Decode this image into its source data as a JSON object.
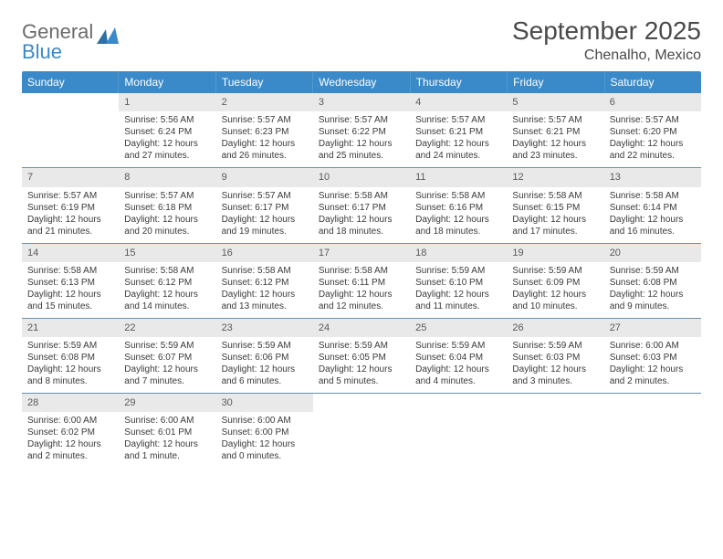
{
  "brand": {
    "word1": "General",
    "word2": "Blue"
  },
  "title": "September 2025",
  "location": "Chenalho, Mexico",
  "colors": {
    "header_bg": "#3a8ac9",
    "logo_blue": "#3a8ac9",
    "logo_gray": "#6b6b6b",
    "daynum_bg": "#e9e9e9",
    "rule": "#6a91ae"
  },
  "weekdays": [
    "Sunday",
    "Monday",
    "Tuesday",
    "Wednesday",
    "Thursday",
    "Friday",
    "Saturday"
  ],
  "weeks": [
    [
      null,
      {
        "n": "1",
        "sr": "5:56 AM",
        "ss": "6:24 PM",
        "dl": "Daylight: 12 hours and 27 minutes."
      },
      {
        "n": "2",
        "sr": "5:57 AM",
        "ss": "6:23 PM",
        "dl": "Daylight: 12 hours and 26 minutes."
      },
      {
        "n": "3",
        "sr": "5:57 AM",
        "ss": "6:22 PM",
        "dl": "Daylight: 12 hours and 25 minutes."
      },
      {
        "n": "4",
        "sr": "5:57 AM",
        "ss": "6:21 PM",
        "dl": "Daylight: 12 hours and 24 minutes."
      },
      {
        "n": "5",
        "sr": "5:57 AM",
        "ss": "6:21 PM",
        "dl": "Daylight: 12 hours and 23 minutes."
      },
      {
        "n": "6",
        "sr": "5:57 AM",
        "ss": "6:20 PM",
        "dl": "Daylight: 12 hours and 22 minutes."
      }
    ],
    [
      {
        "n": "7",
        "sr": "5:57 AM",
        "ss": "6:19 PM",
        "dl": "Daylight: 12 hours and 21 minutes."
      },
      {
        "n": "8",
        "sr": "5:57 AM",
        "ss": "6:18 PM",
        "dl": "Daylight: 12 hours and 20 minutes."
      },
      {
        "n": "9",
        "sr": "5:57 AM",
        "ss": "6:17 PM",
        "dl": "Daylight: 12 hours and 19 minutes."
      },
      {
        "n": "10",
        "sr": "5:58 AM",
        "ss": "6:17 PM",
        "dl": "Daylight: 12 hours and 18 minutes."
      },
      {
        "n": "11",
        "sr": "5:58 AM",
        "ss": "6:16 PM",
        "dl": "Daylight: 12 hours and 18 minutes."
      },
      {
        "n": "12",
        "sr": "5:58 AM",
        "ss": "6:15 PM",
        "dl": "Daylight: 12 hours and 17 minutes."
      },
      {
        "n": "13",
        "sr": "5:58 AM",
        "ss": "6:14 PM",
        "dl": "Daylight: 12 hours and 16 minutes."
      }
    ],
    [
      {
        "n": "14",
        "sr": "5:58 AM",
        "ss": "6:13 PM",
        "dl": "Daylight: 12 hours and 15 minutes."
      },
      {
        "n": "15",
        "sr": "5:58 AM",
        "ss": "6:12 PM",
        "dl": "Daylight: 12 hours and 14 minutes."
      },
      {
        "n": "16",
        "sr": "5:58 AM",
        "ss": "6:12 PM",
        "dl": "Daylight: 12 hours and 13 minutes."
      },
      {
        "n": "17",
        "sr": "5:58 AM",
        "ss": "6:11 PM",
        "dl": "Daylight: 12 hours and 12 minutes."
      },
      {
        "n": "18",
        "sr": "5:59 AM",
        "ss": "6:10 PM",
        "dl": "Daylight: 12 hours and 11 minutes."
      },
      {
        "n": "19",
        "sr": "5:59 AM",
        "ss": "6:09 PM",
        "dl": "Daylight: 12 hours and 10 minutes."
      },
      {
        "n": "20",
        "sr": "5:59 AM",
        "ss": "6:08 PM",
        "dl": "Daylight: 12 hours and 9 minutes."
      }
    ],
    [
      {
        "n": "21",
        "sr": "5:59 AM",
        "ss": "6:08 PM",
        "dl": "Daylight: 12 hours and 8 minutes."
      },
      {
        "n": "22",
        "sr": "5:59 AM",
        "ss": "6:07 PM",
        "dl": "Daylight: 12 hours and 7 minutes."
      },
      {
        "n": "23",
        "sr": "5:59 AM",
        "ss": "6:06 PM",
        "dl": "Daylight: 12 hours and 6 minutes."
      },
      {
        "n": "24",
        "sr": "5:59 AM",
        "ss": "6:05 PM",
        "dl": "Daylight: 12 hours and 5 minutes."
      },
      {
        "n": "25",
        "sr": "5:59 AM",
        "ss": "6:04 PM",
        "dl": "Daylight: 12 hours and 4 minutes."
      },
      {
        "n": "26",
        "sr": "5:59 AM",
        "ss": "6:03 PM",
        "dl": "Daylight: 12 hours and 3 minutes."
      },
      {
        "n": "27",
        "sr": "6:00 AM",
        "ss": "6:03 PM",
        "dl": "Daylight: 12 hours and 2 minutes."
      }
    ],
    [
      {
        "n": "28",
        "sr": "6:00 AM",
        "ss": "6:02 PM",
        "dl": "Daylight: 12 hours and 2 minutes."
      },
      {
        "n": "29",
        "sr": "6:00 AM",
        "ss": "6:01 PM",
        "dl": "Daylight: 12 hours and 1 minute."
      },
      {
        "n": "30",
        "sr": "6:00 AM",
        "ss": "6:00 PM",
        "dl": "Daylight: 12 hours and 0 minutes."
      },
      null,
      null,
      null,
      null
    ]
  ]
}
